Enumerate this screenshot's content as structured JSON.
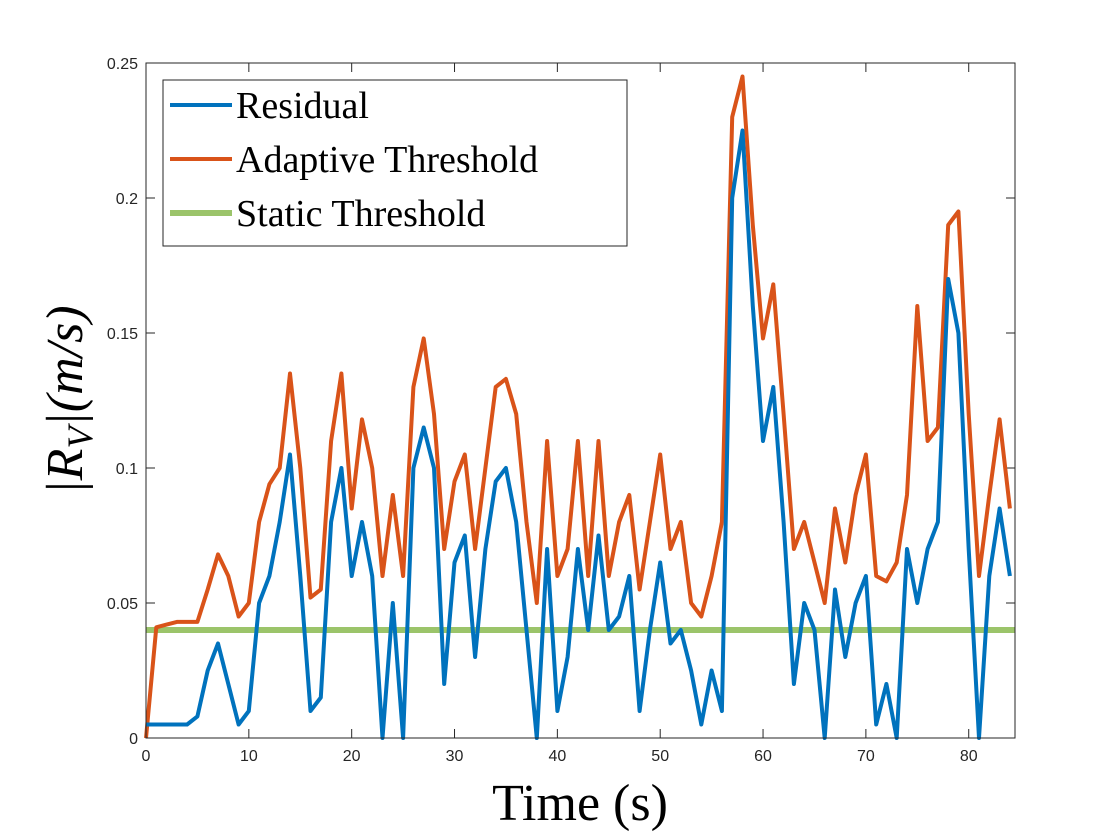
{
  "chart_data": {
    "type": "line",
    "x_label": "Time (s)",
    "y_label": "|R_V|(m/s)",
    "xlim": [
      0,
      84.5
    ],
    "ylim": [
      0,
      0.25
    ],
    "xticks": [
      0,
      10,
      20,
      30,
      40,
      50,
      60,
      70,
      80
    ],
    "yticks": [
      0,
      0.05,
      0.1,
      0.15,
      0.2,
      0.25
    ],
    "legend": "upper left",
    "series": [
      {
        "name": "Residual",
        "color": "#0072BD",
        "x": [
          0,
          1,
          2,
          3,
          4,
          5,
          6,
          7,
          8,
          9,
          10,
          11,
          12,
          13,
          14,
          15,
          16,
          17,
          18,
          19,
          20,
          21,
          22,
          23,
          24,
          25,
          26,
          27,
          28,
          29,
          30,
          31,
          32,
          33,
          34,
          35,
          36,
          37,
          38,
          39,
          40,
          41,
          42,
          43,
          44,
          45,
          46,
          47,
          48,
          49,
          50,
          51,
          52,
          53,
          54,
          55,
          56,
          57,
          58,
          59,
          60,
          61,
          62,
          63,
          64,
          65,
          66,
          67,
          68,
          69,
          70,
          71,
          72,
          73,
          74,
          75,
          76,
          77,
          78,
          79,
          80,
          81,
          82,
          83,
          84
        ],
        "values": [
          0.005,
          0.005,
          0.005,
          0.005,
          0.005,
          0.008,
          0.025,
          0.035,
          0.02,
          0.005,
          0.01,
          0.05,
          0.06,
          0.08,
          0.105,
          0.06,
          0.01,
          0.015,
          0.08,
          0.1,
          0.06,
          0.08,
          0.06,
          0.0,
          0.05,
          0.0,
          0.1,
          0.115,
          0.1,
          0.02,
          0.065,
          0.075,
          0.03,
          0.07,
          0.095,
          0.1,
          0.08,
          0.04,
          0.0,
          0.07,
          0.01,
          0.03,
          0.07,
          0.04,
          0.075,
          0.04,
          0.045,
          0.06,
          0.01,
          0.04,
          0.065,
          0.035,
          0.04,
          0.025,
          0.005,
          0.025,
          0.01,
          0.2,
          0.225,
          0.16,
          0.11,
          0.13,
          0.08,
          0.02,
          0.05,
          0.04,
          0.0,
          0.055,
          0.03,
          0.05,
          0.06,
          0.005,
          0.02,
          0.0,
          0.07,
          0.05,
          0.07,
          0.08,
          0.17,
          0.15,
          0.07,
          0.0,
          0.06,
          0.085,
          0.06
        ]
      },
      {
        "name": "Adaptive Threshold",
        "color": "#D95319",
        "x": [
          0,
          1,
          2,
          3,
          4,
          5,
          6,
          7,
          8,
          9,
          10,
          11,
          12,
          13,
          14,
          15,
          16,
          17,
          18,
          19,
          20,
          21,
          22,
          23,
          24,
          25,
          26,
          27,
          28,
          29,
          30,
          31,
          32,
          33,
          34,
          35,
          36,
          37,
          38,
          39,
          40,
          41,
          42,
          43,
          44,
          45,
          46,
          47,
          48,
          49,
          50,
          51,
          52,
          53,
          54,
          55,
          56,
          57,
          58,
          59,
          60,
          61,
          62,
          63,
          64,
          65,
          66,
          67,
          68,
          69,
          70,
          71,
          72,
          73,
          74,
          75,
          76,
          77,
          78,
          79,
          80,
          81,
          82,
          83,
          84
        ],
        "values": [
          0.0,
          0.041,
          0.042,
          0.043,
          0.043,
          0.043,
          0.055,
          0.068,
          0.06,
          0.045,
          0.05,
          0.08,
          0.094,
          0.1,
          0.135,
          0.1,
          0.052,
          0.055,
          0.11,
          0.135,
          0.085,
          0.118,
          0.1,
          0.06,
          0.09,
          0.06,
          0.13,
          0.148,
          0.12,
          0.07,
          0.095,
          0.105,
          0.07,
          0.1,
          0.13,
          0.133,
          0.12,
          0.08,
          0.05,
          0.11,
          0.06,
          0.07,
          0.11,
          0.06,
          0.11,
          0.06,
          0.08,
          0.09,
          0.055,
          0.08,
          0.105,
          0.07,
          0.08,
          0.05,
          0.045,
          0.06,
          0.08,
          0.23,
          0.245,
          0.19,
          0.148,
          0.168,
          0.12,
          0.07,
          0.08,
          0.065,
          0.05,
          0.085,
          0.065,
          0.09,
          0.105,
          0.06,
          0.058,
          0.065,
          0.09,
          0.16,
          0.11,
          0.115,
          0.19,
          0.195,
          0.12,
          0.06,
          0.09,
          0.118,
          0.085
        ]
      },
      {
        "name": "Static Threshold",
        "color": "#9BC46A",
        "x": [
          0,
          84.5
        ],
        "values": [
          0.04,
          0.04
        ]
      }
    ]
  }
}
